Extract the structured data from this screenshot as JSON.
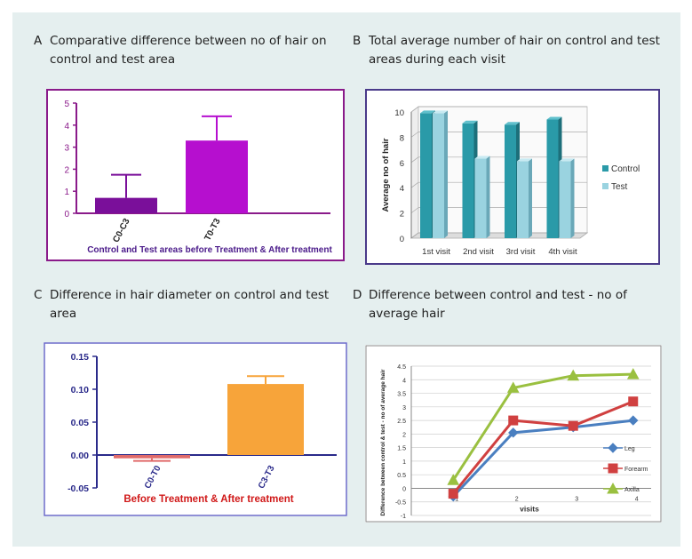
{
  "panels": {
    "a": {
      "letter": "A",
      "title_line1": "Comparative difference between no of hair on",
      "title_line2": "control and test area"
    },
    "b": {
      "letter": "B",
      "title_line1": "Total average number of hair on control and test",
      "title_line2": "areas during each visit"
    },
    "c": {
      "letter": "C",
      "title_line1": "Difference in hair diameter on control and test",
      "title_line2": "area"
    },
    "d": {
      "letter": "D",
      "title_line1": "Difference between control and test - no of",
      "title_line2": "average hair"
    }
  },
  "chart_data": [
    {
      "id": "A",
      "type": "bar",
      "categories": [
        "C0-C3",
        "T0-T3"
      ],
      "values": [
        0.7,
        3.3
      ],
      "errors": [
        1.05,
        1.1
      ],
      "colors": [
        "#7a0f9a",
        "#b60fcf"
      ],
      "xlabel": "Control and Test areas before Treatment & After treatment",
      "ylabel": "",
      "ylim": [
        0,
        5
      ],
      "yticks": [
        "0",
        "1",
        "2",
        "3",
        "4",
        "5"
      ],
      "axis_color": "#8a1a8a",
      "border_color": "#8a1a8a"
    },
    {
      "id": "B",
      "type": "bar",
      "style": "3d-clustered",
      "categories": [
        "1st visit",
        "2nd visit",
        "3rd visit",
        "4th visit"
      ],
      "series": [
        {
          "name": "Control",
          "values": [
            9.9,
            9.1,
            9.0,
            9.4
          ],
          "color": "#2a9aa8"
        },
        {
          "name": "Test",
          "values": [
            9.9,
            6.3,
            6.1,
            6.1
          ],
          "color": "#9ad3e0"
        }
      ],
      "ylabel": "Average no of hair",
      "ylim": [
        0,
        10
      ],
      "yticks": [
        "0",
        "2",
        "4",
        "6",
        "8",
        "10"
      ],
      "legend": "right",
      "grid": true,
      "border_color": "#4a3a8a"
    },
    {
      "id": "C",
      "type": "bar",
      "categories": [
        "C0-T0",
        "C3-T3"
      ],
      "values": [
        -0.005,
        0.108
      ],
      "errors": [
        0.004,
        0.012
      ],
      "colors": [
        "#e06a6a",
        "#f7a43a"
      ],
      "xlabel": "Before Treatment & After treatment",
      "ylabel": "",
      "ylim": [
        -0.05,
        0.15
      ],
      "yticks": [
        "-0.05",
        "0.00",
        "0.05",
        "0.10",
        "0.15"
      ],
      "axis_color": "#2a2a8a",
      "tick_color": "#2a2a8a",
      "xlabel_color": "#d01818",
      "border_color": "#6a6ac8"
    },
    {
      "id": "D",
      "type": "line",
      "x": [
        1,
        2,
        3,
        4
      ],
      "xticks": [
        "1",
        "2",
        "3",
        "4"
      ],
      "series": [
        {
          "name": "Leg",
          "values": [
            -0.3,
            2.05,
            2.25,
            2.5
          ],
          "color": "#4a7fc0",
          "marker": "diamond"
        },
        {
          "name": "Forearm",
          "values": [
            -0.2,
            2.5,
            2.3,
            3.2
          ],
          "color": "#d04040",
          "marker": "square"
        },
        {
          "name": "Axilla",
          "values": [
            0.3,
            3.7,
            4.15,
            4.2
          ],
          "color": "#9ac040",
          "marker": "triangle"
        }
      ],
      "xlabel": "visits",
      "ylabel": "Difference between control & test - no of average hair",
      "ylim": [
        -1,
        4.5
      ],
      "yticks": [
        "-1",
        "-0.5",
        "0",
        "0.5",
        "1",
        "1.5",
        "2",
        "2.5",
        "3",
        "3.5",
        "4",
        "4.5"
      ],
      "legend": "right",
      "grid": true,
      "border_color": "#8a8a8a"
    }
  ]
}
